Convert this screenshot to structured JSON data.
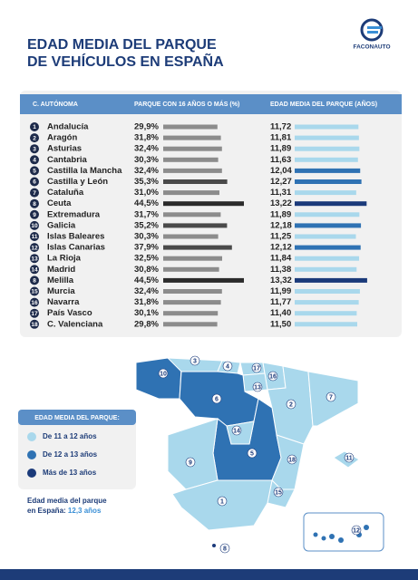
{
  "header": {
    "title_line1": "EDAD MEDIA DEL PARQUE",
    "title_line2": "DE VEHÍCULOS EN ESPAÑA",
    "logo": "FACONAUTO"
  },
  "table": {
    "columns": [
      "C. AUTÓNOMA",
      "PARQUE CON 16 AÑOS O MÁS (%)",
      "EDAD MEDIA DEL PARQUE (AÑOS)"
    ],
    "numbers": [
      1,
      2,
      3,
      4,
      5,
      6,
      7,
      8,
      9,
      10,
      11,
      12,
      13,
      14,
      8,
      15,
      16,
      17,
      18
    ],
    "regions": [
      "Andalucía",
      "Aragón",
      "Asturias",
      "Cantabria",
      "Castilla la Mancha",
      "Castilla y León",
      "Cataluña",
      "Ceuta",
      "Extremadura",
      "Galicia",
      "Islas Baleares",
      "Islas Canarias",
      "La Rioja",
      "Madrid",
      "Melilla",
      "Murcia",
      "Navarra",
      "País Vasco",
      "C. Valenciana"
    ],
    "share_values": [
      29.9,
      31.8,
      32.4,
      30.3,
      32.4,
      35.3,
      31.0,
      44.5,
      31.7,
      35.2,
      30.3,
      37.9,
      32.5,
      30.8,
      44.5,
      32.4,
      31.8,
      30.1,
      29.8
    ],
    "share_labels": [
      "29,9%",
      "31,8%",
      "32,4%",
      "30,3%",
      "32,4%",
      "35,3%",
      "31,0%",
      "44,5%",
      "31,7%",
      "35,2%",
      "30,3%",
      "37,9%",
      "32,5%",
      "30,8%",
      "44,5%",
      "32,4%",
      "31,8%",
      "30,1%",
      "29,8%"
    ],
    "share_colors": [
      "#8c8c8c",
      "#8c8c8c",
      "#8c8c8c",
      "#8c8c8c",
      "#8c8c8c",
      "#4a4a4a",
      "#8c8c8c",
      "#2b2b2b",
      "#8c8c8c",
      "#4a4a4a",
      "#8c8c8c",
      "#4a4a4a",
      "#8c8c8c",
      "#8c8c8c",
      "#2b2b2b",
      "#8c8c8c",
      "#8c8c8c",
      "#8c8c8c",
      "#8c8c8c"
    ],
    "age_values": [
      11.72,
      11.81,
      11.89,
      11.63,
      12.04,
      12.27,
      11.31,
      13.22,
      11.89,
      12.18,
      11.25,
      12.12,
      11.84,
      11.38,
      13.32,
      11.99,
      11.77,
      11.4,
      11.5
    ],
    "age_labels": [
      "11,72",
      "11,81",
      "11,89",
      "11,63",
      "12,04",
      "12,27",
      "11,31",
      "13,22",
      "11,89",
      "12,18",
      "11,25",
      "12,12",
      "11,84",
      "11,38",
      "13,32",
      "11,99",
      "11,77",
      "11,40",
      "11,50"
    ],
    "age_colors": [
      "#a9d8ec",
      "#a9d8ec",
      "#a9d8ec",
      "#a9d8ec",
      "#2f72b3",
      "#2f72b3",
      "#a9d8ec",
      "#1b3a7a",
      "#a9d8ec",
      "#2f72b3",
      "#a9d8ec",
      "#2f72b3",
      "#a9d8ec",
      "#a9d8ec",
      "#1b3a7a",
      "#a9d8ec",
      "#a9d8ec",
      "#a9d8ec",
      "#a9d8ec"
    ]
  },
  "legend": {
    "title": "EDAD MEDIA DEL PARQUE:",
    "items": [
      "De 11 a 12 años",
      "De 12 a 13 años",
      "Más de 13 años"
    ],
    "colors": [
      "#a9d8ec",
      "#2f72b3",
      "#1b3a7a"
    ]
  },
  "summary": {
    "line1": "Edad media del parque",
    "line2": "en España:",
    "value": "12,3 años"
  },
  "map_labels": [
    10,
    3,
    4,
    17,
    16,
    13,
    6,
    2,
    7,
    14,
    5,
    18,
    9,
    11,
    15,
    1,
    8,
    12
  ]
}
